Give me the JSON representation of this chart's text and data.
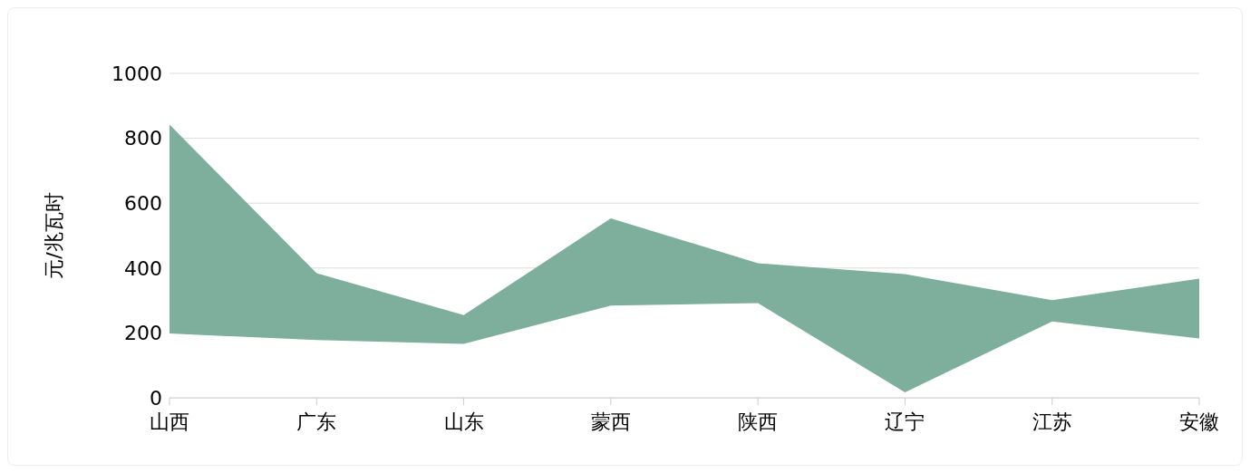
{
  "chart_data": {
    "type": "area",
    "ylabel": "元/兆瓦时",
    "categories": [
      "山西",
      "广东",
      "山东",
      "蒙西",
      "陕西",
      "辽宁",
      "江苏",
      "安徽"
    ],
    "series": [
      {
        "color": "#7daf9c",
        "values": [
          842,
          384,
          255,
          553,
          415,
          381,
          301,
          367
        ]
      },
      {
        "color": "#ffffff",
        "values": [
          198,
          178,
          166,
          284,
          292,
          17,
          235,
          183
        ]
      }
    ],
    "ylim": [
      0,
      1000
    ],
    "yticks": [
      0,
      200,
      400,
      600,
      800,
      1000
    ],
    "grid": "y",
    "legend": false
  }
}
